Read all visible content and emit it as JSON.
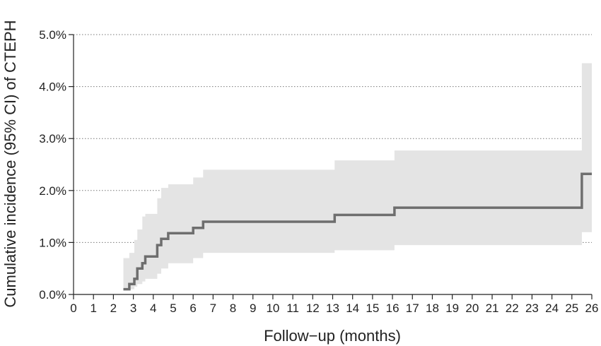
{
  "chart_data": {
    "type": "line",
    "title": "",
    "xlabel": "Follow−up (months)",
    "ylabel": "Cumulative incidence (95% CI) of CTEPH",
    "xlim": [
      0,
      26
    ],
    "ylim": [
      0,
      5
    ],
    "x_ticks": [
      0,
      1,
      2,
      3,
      4,
      5,
      6,
      7,
      8,
      9,
      10,
      11,
      12,
      13,
      14,
      15,
      16,
      17,
      18,
      19,
      20,
      21,
      22,
      23,
      24,
      25,
      26
    ],
    "x_tick_labels": [
      "0",
      "1",
      "2",
      "3",
      "4",
      "5",
      "6",
      "7",
      "8",
      "9",
      "10",
      "11",
      "12",
      "13",
      "14",
      "15",
      "16",
      "17",
      "18",
      "19",
      "20",
      "21",
      "22",
      "23",
      "24",
      "25",
      "26"
    ],
    "y_ticks": [
      0,
      1,
      2,
      3,
      4,
      5
    ],
    "y_tick_labels": [
      "0.0%",
      "1.0%",
      "2.0%",
      "3.0%",
      "4.0%",
      "5.0%"
    ],
    "grid": "horizontal dotted",
    "legend": "none",
    "colors": {
      "line": "#6e6e6e",
      "band": "#e4e4e4",
      "axis": "#222222",
      "grid": "#777777"
    },
    "series": [
      {
        "step": true,
        "x": [
          2.5,
          2.8,
          3.05,
          3.2,
          3.45,
          3.6,
          4.2,
          4.4,
          4.75,
          6.0,
          6.5,
          13.1,
          16.1,
          25.5,
          26.0
        ],
        "y": [
          0.1,
          0.2,
          0.3,
          0.5,
          0.6,
          0.73,
          0.95,
          1.07,
          1.18,
          1.28,
          1.4,
          1.53,
          1.67,
          2.32,
          2.32
        ],
        "ci_lower": [
          0.1,
          0.1,
          0.15,
          0.2,
          0.25,
          0.3,
          0.4,
          0.5,
          0.6,
          0.7,
          0.8,
          0.85,
          0.95,
          1.2,
          1.2
        ],
        "ci_upper": [
          0.7,
          0.8,
          1.05,
          1.25,
          1.5,
          1.55,
          1.85,
          2.05,
          2.12,
          2.25,
          2.4,
          2.58,
          2.77,
          4.45,
          4.45
        ]
      }
    ]
  }
}
